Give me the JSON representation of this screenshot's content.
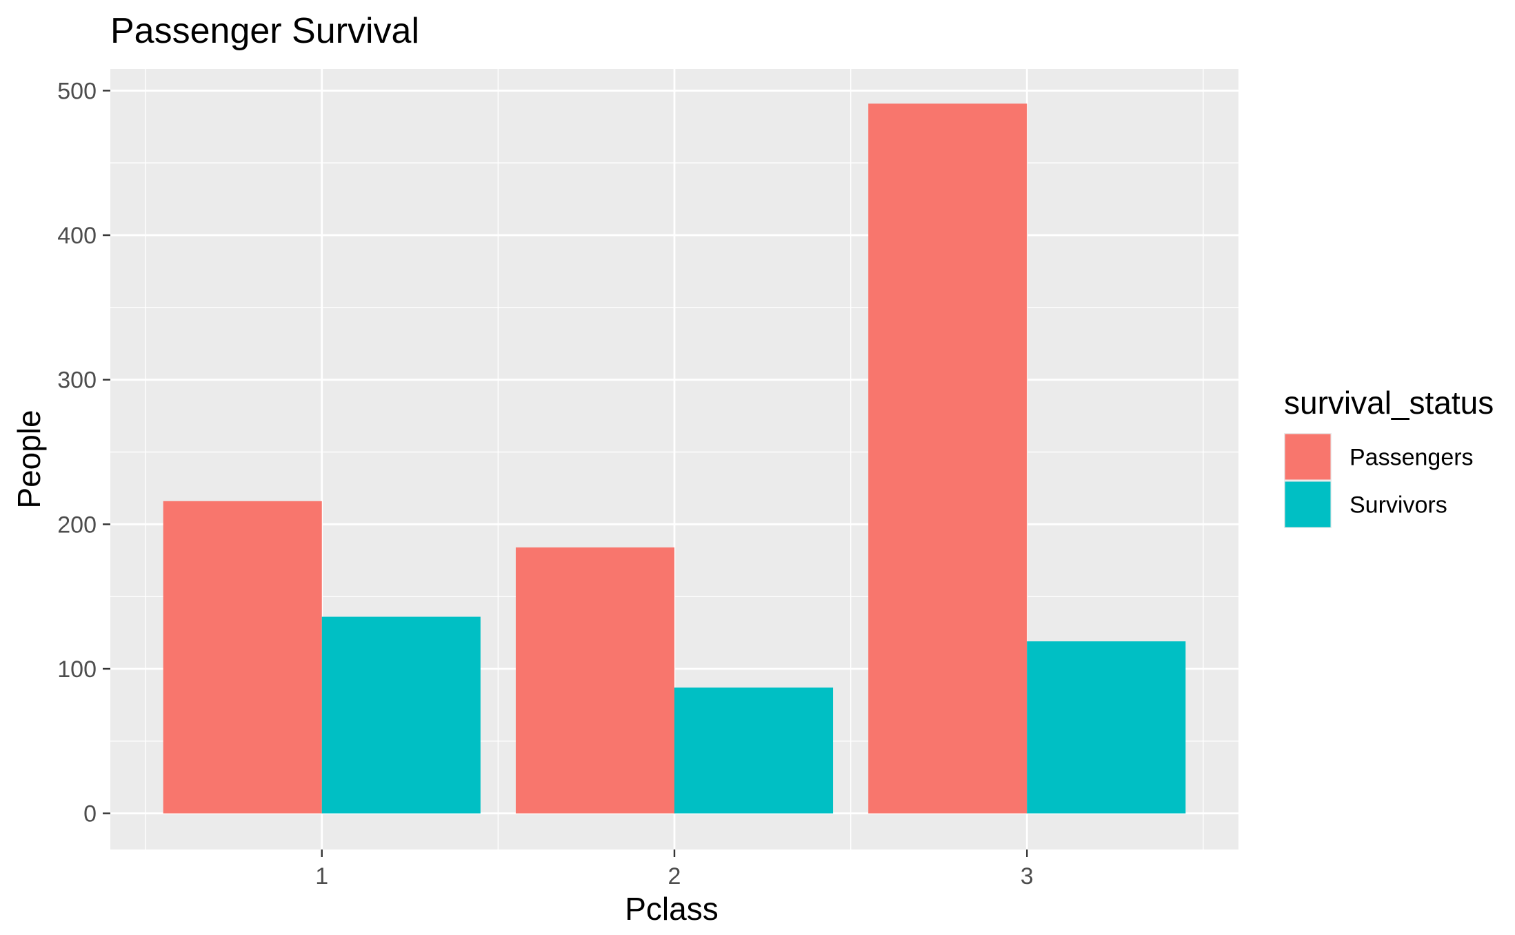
{
  "chart_data": {
    "type": "bar",
    "title": "Passenger Survival",
    "xlabel": "Pclass",
    "ylabel": "People",
    "categories": [
      "1",
      "2",
      "3"
    ],
    "series": [
      {
        "name": "Passengers",
        "values": [
          216,
          184,
          491
        ],
        "color": "#F8766D"
      },
      {
        "name": "Survivors",
        "values": [
          136,
          87,
          119
        ],
        "color": "#00BFC4"
      }
    ],
    "ylim": [
      -25,
      515
    ],
    "yticks": [
      0,
      100,
      200,
      300,
      400,
      500
    ],
    "ytick_labels": [
      "0",
      "100",
      "200",
      "300",
      "400",
      "500"
    ],
    "grid": true,
    "legend": {
      "title": "survival_status",
      "position": "right",
      "entries": [
        "Passengers",
        "Survivors"
      ]
    },
    "colors": {
      "panel_background": "#EBEBEB",
      "grid_line": "#FFFFFF",
      "tick_text": "#4D4D4D"
    }
  }
}
